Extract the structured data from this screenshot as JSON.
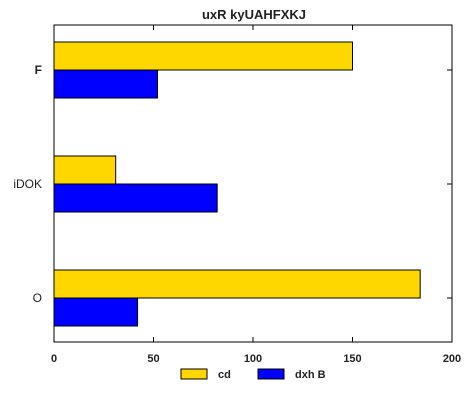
{
  "chart_data": {
    "type": "bar",
    "orientation": "horizontal",
    "title": "uxR kyUAHFXKJ",
    "xlabel": "",
    "ylabel": "",
    "categories": [
      "O",
      "iDOK",
      "F"
    ],
    "series": [
      {
        "name": "cd",
        "values": [
          184,
          31,
          150
        ],
        "color": "#ffd700"
      },
      {
        "name": "dxh B",
        "values": [
          42,
          82,
          52
        ],
        "color": "#0000ff"
      }
    ],
    "xlim": [
      0,
      200
    ],
    "xticks": [
      0,
      50,
      100,
      150,
      200
    ],
    "grid": false,
    "legend_position": "bottom"
  }
}
